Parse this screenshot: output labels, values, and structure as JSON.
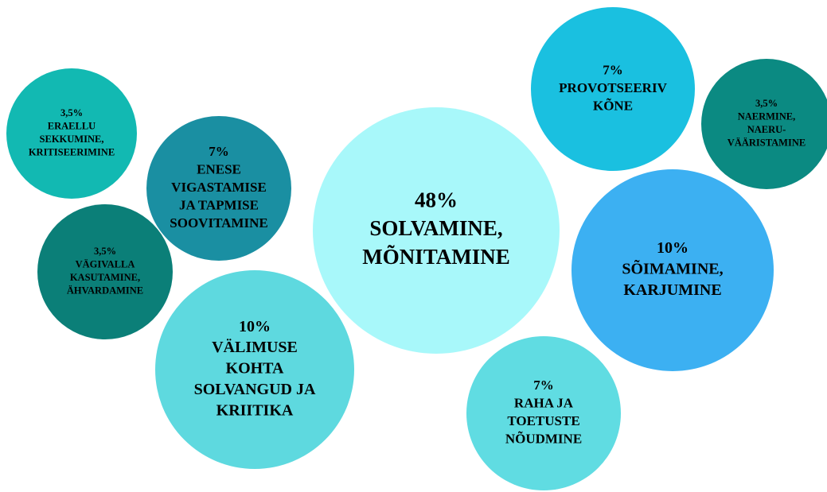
{
  "chart_data": {
    "type": "bubble",
    "categories": [
      [
        "SOLVAMINE,",
        "MÕNITAMINE"
      ],
      [
        "VÄLIMUSE",
        "KOHTA",
        "SOLVANGUD JA",
        "KRIITIKA"
      ],
      [
        "SÕIMAMINE,",
        "KARJUMINE"
      ],
      [
        "ENESE",
        "VIGASTAMISE",
        "JA TAPMISE",
        "SOOVITAMINE"
      ],
      [
        "PROVOTSEERIV",
        "KÕNE"
      ],
      [
        "RAHA JA",
        "TOETUSTE",
        "NÕUDMINE"
      ],
      [
        "ERAELLU",
        "SEKKUMINE,",
        "KRITISEERIMINE"
      ],
      [
        "VÄGIVALLA",
        "KASUTAMINE,",
        "ÄHVARDAMINE"
      ],
      [
        "NAERMINE,",
        "NAERU-",
        "VÄÄRISTAMINE"
      ]
    ],
    "values": [
      48,
      10,
      10,
      7,
      7,
      7,
      3.5,
      3.5,
      3.5
    ],
    "value_labels": [
      "48%",
      "10%",
      "10%",
      "7%",
      "7%",
      "7%",
      "3,5%",
      "3,5%",
      "3,5%"
    ],
    "colors": [
      "#a8f8fa",
      "#5ed9df",
      "#3cb0f2",
      "#1a8fa2",
      "#1ac0e0",
      "#60dce2",
      "#12b9b2",
      "#0b7f78",
      "#0b8a82"
    ]
  }
}
